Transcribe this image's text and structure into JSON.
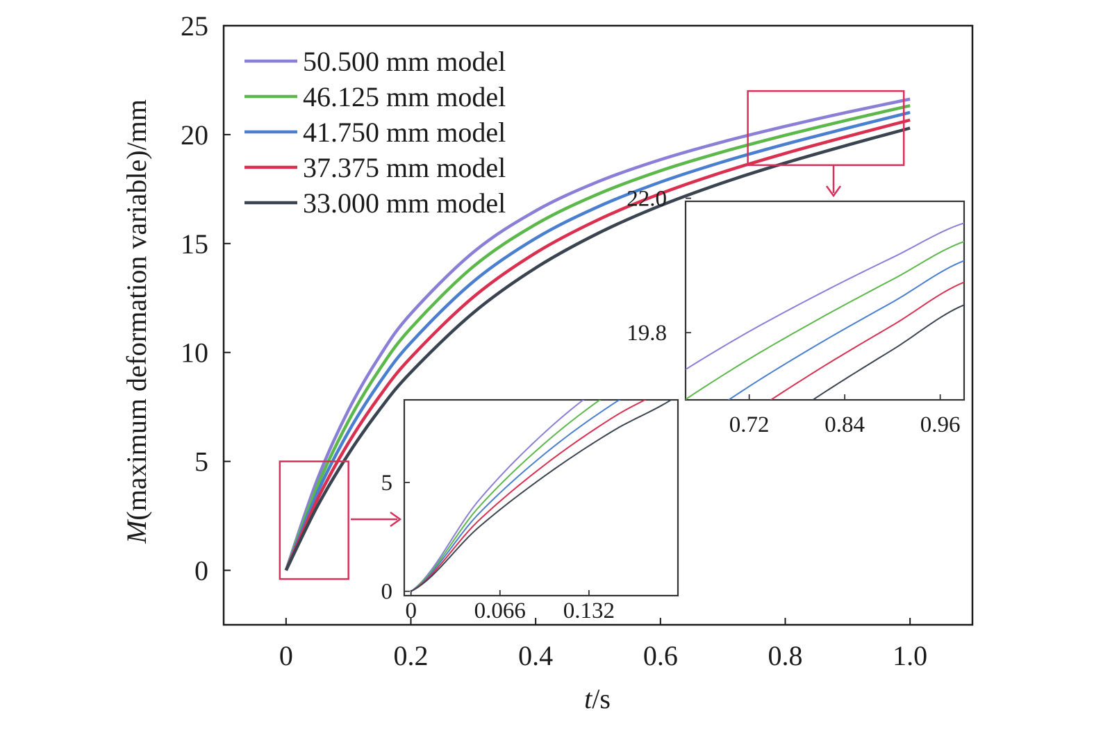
{
  "chart_data": [
    {
      "type": "line",
      "xlabel_italic": "t",
      "xlabel_unit": "/s",
      "ylabel_italic": "M",
      "ylabel_rest": "(maximum deformation variable)/mm",
      "xlim": [
        -0.1,
        1.1
      ],
      "ylim": [
        -2.5,
        25
      ],
      "xticks": [
        0,
        0.2,
        0.4,
        0.6,
        0.8,
        1.0
      ],
      "xtick_labels": [
        "0",
        "0.2",
        "0.4",
        "0.6",
        "0.8",
        "1.0"
      ],
      "yticks": [
        0,
        5,
        10,
        15,
        20,
        25
      ],
      "ytick_labels": [
        "0",
        "5",
        "10",
        "15",
        "20",
        "25"
      ],
      "grid": false,
      "legend_position": "top-left",
      "series": [
        {
          "name": "50.500 mm model",
          "color": "#8a7fd6",
          "x": [
            0,
            0.05,
            0.1,
            0.15,
            0.2,
            0.3,
            0.4,
            0.5,
            0.6,
            0.7,
            0.8,
            0.9,
            1.0
          ],
          "y": [
            0,
            4.16,
            7.35,
            9.83,
            11.78,
            14.6,
            16.5,
            17.84,
            18.85,
            19.67,
            20.38,
            21.03,
            21.63
          ]
        },
        {
          "name": "46.125 mm model",
          "color": "#5cb84a",
          "x": [
            0,
            0.05,
            0.1,
            0.15,
            0.2,
            0.3,
            0.4,
            0.5,
            0.6,
            0.7,
            0.8,
            0.9,
            1.0
          ],
          "y": [
            0,
            3.85,
            6.85,
            9.23,
            11.12,
            13.94,
            15.88,
            17.27,
            18.34,
            19.21,
            19.97,
            20.67,
            21.33
          ]
        },
        {
          "name": "41.750 mm model",
          "color": "#4a7fd0",
          "x": [
            0,
            0.05,
            0.1,
            0.15,
            0.2,
            0.3,
            0.4,
            0.5,
            0.6,
            0.7,
            0.8,
            0.9,
            1.0
          ],
          "y": [
            0,
            3.55,
            6.36,
            8.62,
            10.45,
            13.25,
            15.24,
            16.69,
            17.82,
            18.75,
            19.56,
            20.3,
            21.02
          ]
        },
        {
          "name": "37.375 mm model",
          "color": "#d93050",
          "x": [
            0,
            0.05,
            0.1,
            0.15,
            0.2,
            0.3,
            0.4,
            0.5,
            0.6,
            0.7,
            0.8,
            0.9,
            1.0
          ],
          "y": [
            0,
            3.24,
            5.85,
            8.0,
            9.77,
            12.54,
            14.57,
            16.09,
            17.29,
            18.28,
            19.14,
            19.92,
            20.67
          ]
        },
        {
          "name": "33.000 mm model",
          "color": "#3a4450",
          "x": [
            0,
            0.05,
            0.1,
            0.15,
            0.2,
            0.3,
            0.4,
            0.5,
            0.6,
            0.7,
            0.8,
            0.9,
            1.0
          ],
          "y": [
            0,
            2.93,
            5.34,
            7.38,
            9.09,
            11.82,
            13.88,
            15.47,
            16.74,
            17.79,
            18.7,
            19.52,
            20.3
          ]
        }
      ],
      "zoom_boxes": [
        {
          "x0": -0.01,
          "x1": 0.1,
          "y0": -0.4,
          "y1": 5
        },
        {
          "x0": 0.74,
          "x1": 0.99,
          "y0": 18.6,
          "y1": 22
        }
      ]
    },
    {
      "type": "line",
      "role": "inset-bottom",
      "xlim": [
        -0.005,
        0.198
      ],
      "ylim": [
        -0.2,
        8.8
      ],
      "xticks": [
        0,
        0.066,
        0.132
      ],
      "xtick_labels": [
        "0",
        "0.066",
        "0.132"
      ],
      "yticks": [
        0,
        5
      ],
      "ytick_labels": [
        "0",
        "5"
      ]
    },
    {
      "type": "line",
      "role": "inset-top-right",
      "xlim": [
        0.64,
        0.99
      ],
      "ylim": [
        18.7,
        21.95
      ],
      "xticks": [
        0.72,
        0.84,
        0.96
      ],
      "xtick_labels": [
        "0.72",
        "0.84",
        "0.96"
      ],
      "yticks": [
        19.8,
        22.0
      ],
      "ytick_labels": [
        "19.8",
        "22.0"
      ]
    }
  ]
}
